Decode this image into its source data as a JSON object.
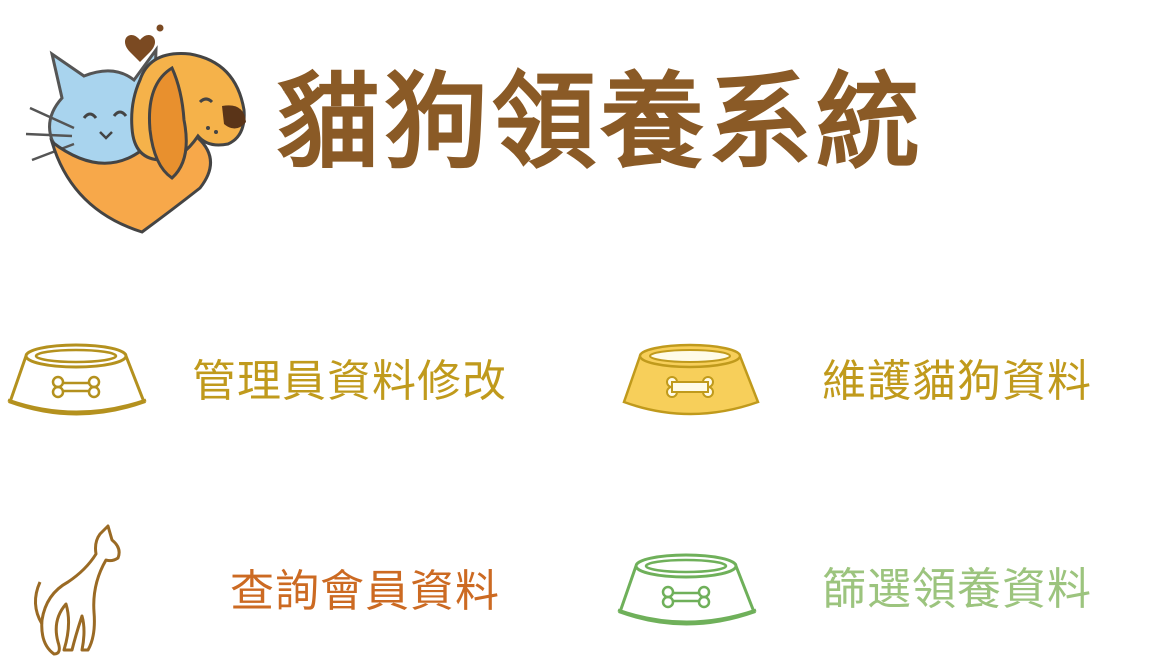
{
  "app": {
    "title": "貓狗領養系統"
  },
  "colors": {
    "title_brown": "#8a5a26",
    "gold": "#c09a1c",
    "bowl_fill": "#f7cf5a",
    "orange": "#cc6a22",
    "green": "#9cc47e",
    "cat_blue": "#a9d4ee",
    "dog_orange": "#f5ae45"
  },
  "menu": [
    {
      "id": "admin",
      "label": "管理員資料修改",
      "icon": "pet-bowl-outline-icon"
    },
    {
      "id": "pets",
      "label": "維護貓狗資料",
      "icon": "pet-bowl-filled-icon"
    },
    {
      "id": "members",
      "label": "查詢會員資料",
      "icon": "cat-silhouette-icon"
    },
    {
      "id": "filter",
      "label": "篩選領養資料",
      "icon": "pet-bowl-green-icon"
    }
  ]
}
